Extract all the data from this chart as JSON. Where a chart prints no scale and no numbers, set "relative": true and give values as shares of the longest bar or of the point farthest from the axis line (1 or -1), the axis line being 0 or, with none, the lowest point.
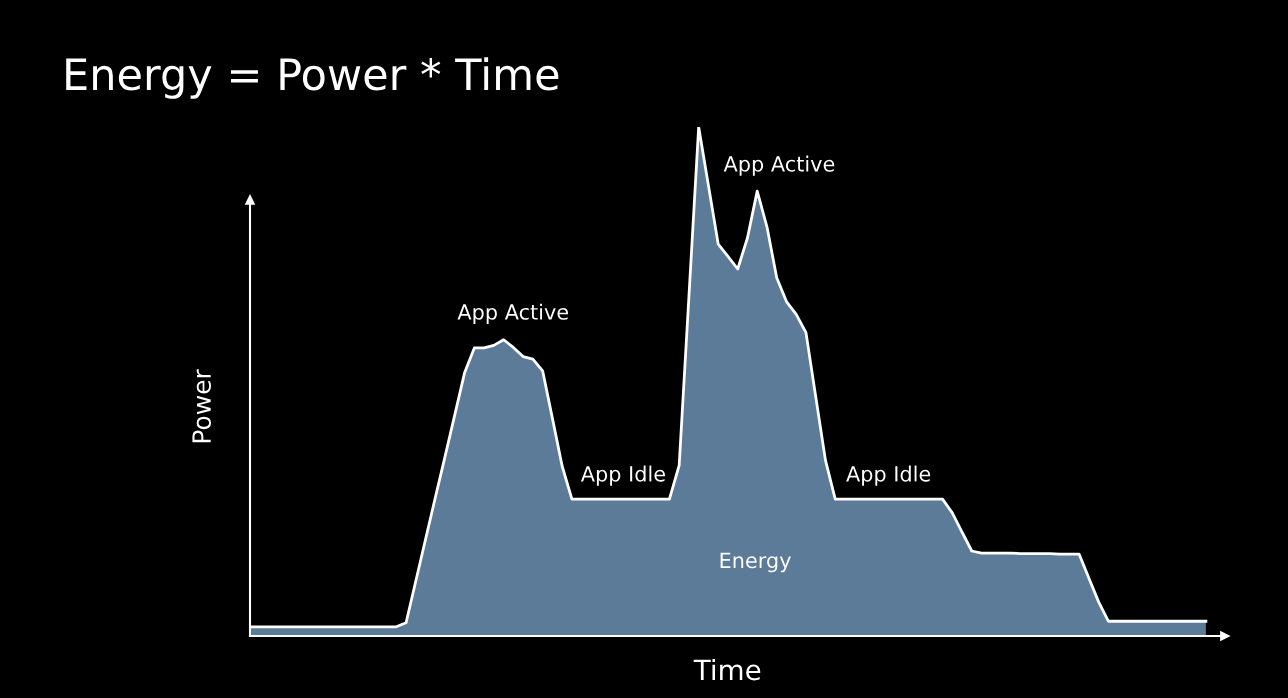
{
  "chart_data": {
    "type": "area",
    "title": "Energy = Power * Time",
    "xlabel": "Time",
    "ylabel": "Power",
    "relative": true,
    "categories": [
      null,
      null,
      null,
      null,
      null,
      null,
      null,
      null,
      null,
      null,
      null,
      null,
      null,
      null,
      null,
      null,
      null,
      null,
      null,
      null,
      null,
      null,
      null,
      null,
      null,
      null,
      null,
      null,
      null,
      null,
      null,
      null,
      null,
      null,
      null,
      null,
      null,
      null,
      null,
      null,
      null,
      null,
      null,
      null,
      null,
      null,
      null,
      null,
      null,
      null,
      null,
      null,
      null,
      null,
      null,
      null,
      null,
      null,
      null,
      null,
      null,
      null,
      null,
      null,
      null,
      null,
      null,
      null,
      null,
      null,
      null,
      null,
      null,
      null,
      null,
      null,
      null,
      null,
      null,
      null,
      null,
      null,
      null,
      null,
      null,
      null,
      null,
      null,
      null,
      null,
      null,
      null,
      null,
      null,
      null,
      null,
      null,
      null,
      null
    ],
    "series": [
      {
        "color": "#5b7b99",
        "values": [
          0.018,
          0.018,
          0.018,
          0.018,
          0.018,
          0.018,
          0.018,
          0.018,
          0.018,
          0.018,
          0.018,
          0.018,
          0.018,
          0.018,
          0.018,
          0.018,
          0.026,
          0.108,
          0.19,
          0.272,
          0.353,
          0.435,
          0.517,
          0.566,
          0.566,
          0.571,
          0.582,
          0.567,
          0.549,
          0.544,
          0.521,
          0.428,
          0.334,
          0.269,
          0.269,
          0.269,
          0.269,
          0.269,
          0.269,
          0.269,
          0.269,
          0.269,
          0.269,
          0.269,
          0.335,
          0.667,
          1.0,
          0.885,
          0.77,
          0.746,
          0.721,
          0.782,
          0.874,
          0.804,
          0.704,
          0.657,
          0.632,
          0.596,
          0.47,
          0.345,
          0.269,
          0.269,
          0.269,
          0.269,
          0.269,
          0.269,
          0.269,
          0.269,
          0.269,
          0.269,
          0.269,
          0.269,
          0.242,
          0.204,
          0.167,
          0.163,
          0.163,
          0.163,
          0.163,
          0.162,
          0.162,
          0.162,
          0.162,
          0.161,
          0.161,
          0.161,
          0.114,
          0.067,
          0.029,
          0.029,
          0.029,
          0.029,
          0.029,
          0.029,
          0.029,
          0.029,
          0.029,
          0.029,
          0.029
        ]
      }
    ],
    "annotations": [
      "App Active",
      "App Idle",
      "App Active",
      "App Idle",
      "Energy"
    ]
  }
}
